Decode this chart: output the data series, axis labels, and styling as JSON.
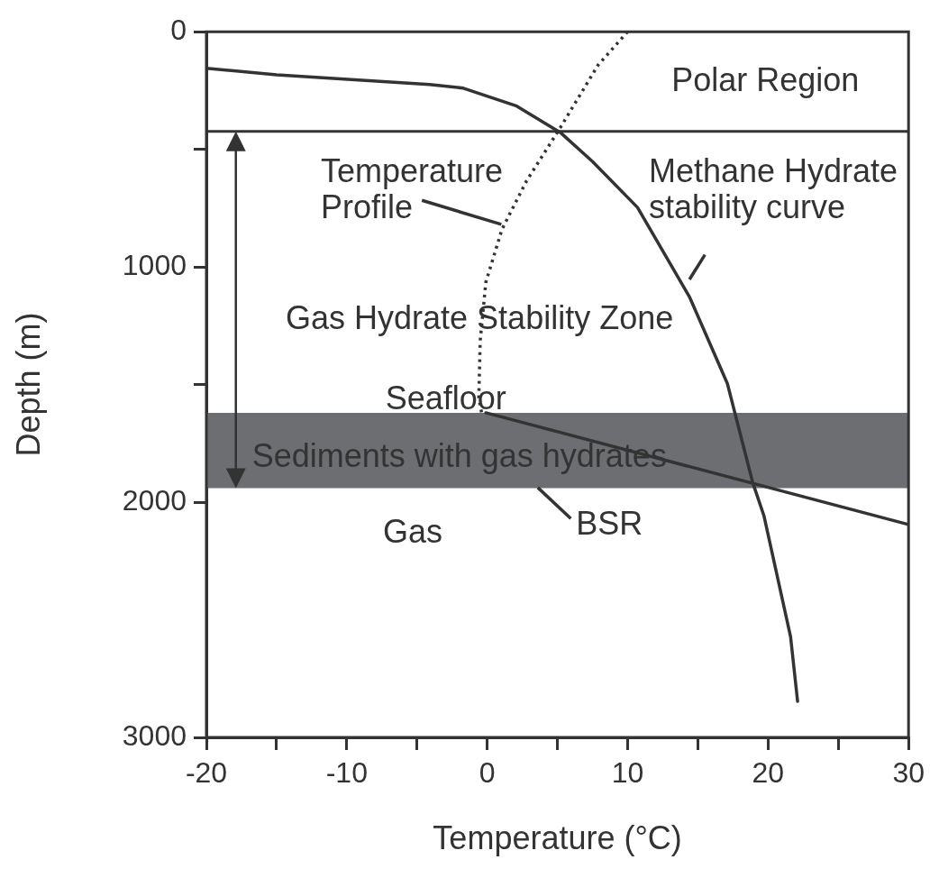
{
  "chart_data": {
    "type": "line",
    "xlabel": "Temperature (°C)",
    "ylabel": "Depth (m)",
    "xlim": [
      -20,
      30
    ],
    "xticks": [
      -20,
      {
        "value": -15,
        "label": null
      },
      -10,
      {
        "value": -5,
        "label": null
      },
      0,
      {
        "value": 5,
        "label": null
      },
      10,
      {
        "value": 15,
        "label": null
      },
      20,
      {
        "value": 25,
        "label": null
      },
      30
    ],
    "ylim": [
      3000,
      0
    ],
    "yticks": [
      0,
      {
        "value": 500,
        "label": null
      },
      1000,
      {
        "value": 1500,
        "label": null
      },
      2000,
      3000
    ],
    "marker": "none",
    "legend": false,
    "series": [
      {
        "name": "Temperature Profile",
        "color": "#333333",
        "line_style": "dotted",
        "x": [
          10,
          7.9,
          5.2,
          2.8,
          1.05,
          -0.1,
          -0.5,
          -0.6,
          -0.4
        ],
        "values": [
          0,
          141,
          408,
          634,
          840,
          1065,
          1313,
          1557,
          1620
        ]
      },
      {
        "color": "#333333",
        "line_style": "solid",
        "x": [
          -0.1,
          30
        ],
        "values": [
          1620,
          2095
        ]
      },
      {
        "name": "Methane Hydrate stability curve",
        "color": "#333333",
        "line_style": "solid",
        "x": [
          -20,
          -15,
          -4.1,
          -1.7,
          2.1,
          5.2,
          7.5,
          10.7,
          14.4,
          17.1,
          18.9,
          19.7,
          21.6,
          22.1
        ],
        "values": [
          155,
          183,
          224,
          240,
          316,
          428,
          552,
          747,
          1127,
          1496,
          1916,
          2057,
          2572,
          2847
        ]
      }
    ],
    "ref_lines": [
      {
        "axis": "y",
        "value": 424,
        "color": "#333333"
      }
    ],
    "bands": [
      {
        "axis": "y",
        "from": 1620,
        "to": 1940,
        "label": "Sediments with gas hydrates",
        "color": "#6d6e71"
      }
    ],
    "annotations": [
      "Polar Region",
      "Gas Hydrate Stability Zone",
      "Seafloor",
      "Gas",
      "BSR"
    ]
  }
}
